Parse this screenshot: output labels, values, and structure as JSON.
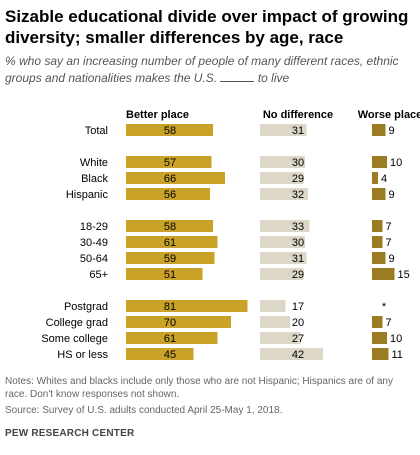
{
  "title": "Sizable educational divide over impact of growing diversity; smaller differences by age, race",
  "subtitle_before": "% who say an increasing number of people of many different races, ethnic groups and nationalities makes the U.S.",
  "subtitle_after": "to live",
  "notes": "Notes: Whites and blacks include only those who are not Hispanic; Hispanics are of any race. Don't know responses not shown.",
  "source": "Source: Survey of U.S. adults conducted April 25-May 1, 2018.",
  "brand": "PEW RESEARCH CENTER",
  "colors": {
    "better": "#c9a227",
    "nodiff": "#dcd7c6",
    "worse": "#9b7c23",
    "label_on_bar": "#000000"
  },
  "chart_data": {
    "type": "bar",
    "categories": [
      "Total",
      "White",
      "Black",
      "Hispanic",
      "18-29",
      "30-49",
      "50-64",
      "65+",
      "Postgrad",
      "College grad",
      "Some college",
      "HS or less"
    ],
    "groups": [
      [
        "Total"
      ],
      [
        "White",
        "Black",
        "Hispanic"
      ],
      [
        "18-29",
        "30-49",
        "50-64",
        "65+"
      ],
      [
        "Postgrad",
        "College grad",
        "Some college",
        "HS or less"
      ]
    ],
    "series": [
      {
        "name": "Better place",
        "values": [
          58,
          57,
          66,
          56,
          58,
          61,
          59,
          51,
          81,
          70,
          61,
          45
        ]
      },
      {
        "name": "No difference",
        "values": [
          31,
          30,
          29,
          32,
          33,
          30,
          31,
          29,
          17,
          20,
          27,
          42
        ]
      },
      {
        "name": "Worse place",
        "values": [
          9,
          10,
          4,
          9,
          7,
          7,
          9,
          15,
          null,
          7,
          10,
          11
        ]
      }
    ],
    "value_labels": {
      "Worse place": [
        "9",
        "10",
        "4",
        "9",
        "7",
        "7",
        "9",
        "15",
        "*",
        "7",
        "10",
        "11"
      ]
    }
  }
}
